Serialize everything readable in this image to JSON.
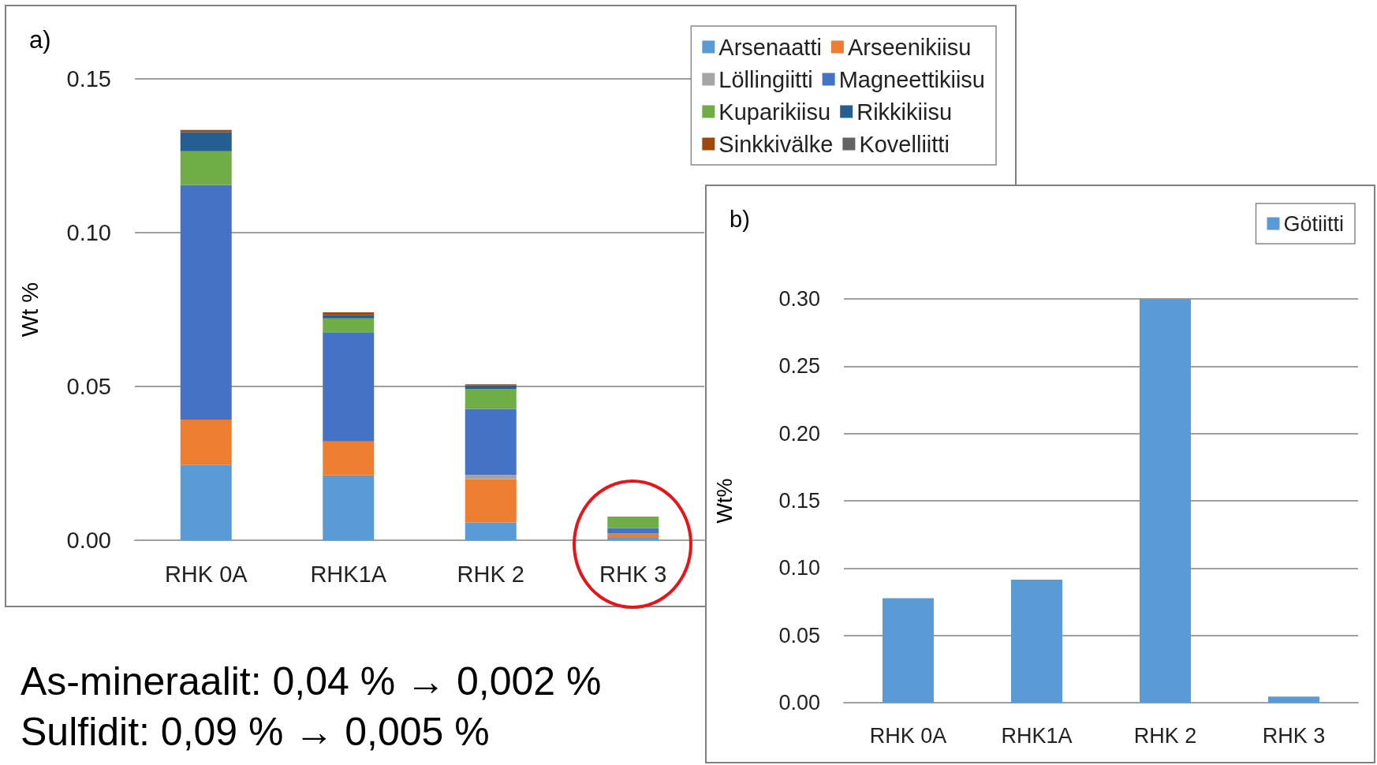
{
  "chart_data": [
    {
      "type": "bar",
      "title": "a)",
      "ylabel": "Wt %",
      "categories": [
        "RHK 0A",
        "RHK1A",
        "RHK 2",
        "RHK 3"
      ],
      "stacked": true,
      "grid": "y",
      "legend": "top right",
      "ylim": [
        0,
        0.15
      ],
      "yticks": [
        {
          "value": 0,
          "label": "0.00"
        },
        {
          "value": 0.05,
          "label": "0.05"
        },
        {
          "value": 0.1,
          "label": "0.10"
        },
        {
          "value": 0.15,
          "label": "0.15"
        }
      ],
      "series": [
        {
          "name": "Arsenaatti",
          "color": "#5b9bd5",
          "values": [
            0.0244,
            0.0211,
            0.0058,
            0.0008
          ]
        },
        {
          "name": "Arseenikiisu",
          "color": "#ed7d31",
          "values": [
            0.0148,
            0.011,
            0.0141,
            0.0014
          ]
        },
        {
          "name": "Löllingiitti",
          "color": "#a5a5a5",
          "values": [
            0,
            0,
            0.0013,
            0
          ]
        },
        {
          "name": "Magneettikiisu",
          "color": "#4472c4",
          "values": [
            0.0763,
            0.0355,
            0.0215,
            0.0018
          ]
        },
        {
          "name": "Kuparikiisu",
          "color": "#70ad47",
          "values": [
            0.011,
            0.0045,
            0.0065,
            0.0037
          ]
        },
        {
          "name": "Rikkikiisu",
          "color": "#255e91",
          "values": [
            0.0062,
            0.0012,
            0.0011,
            0
          ]
        },
        {
          "name": "Sinkkivälke",
          "color": "#9e480e",
          "values": [
            0.0007,
            0.0008,
            0.0004,
            0
          ]
        },
        {
          "name": "Kovelliitti",
          "color": "#636363",
          "values": [
            0,
            0,
            0,
            0
          ]
        }
      ],
      "annotations": [
        "As-mineraalit: 0,04 % → 0,002 %",
        "Sulfidit: 0,09 % → 0,005 %"
      ]
    },
    {
      "type": "bar",
      "title": "b)",
      "ylabel": "Wt%",
      "categories": [
        "RHK 0A",
        "RHK1A",
        "RHK 2",
        "RHK 3"
      ],
      "grid": "y",
      "legend": "top right",
      "ylim": [
        0,
        0.3
      ],
      "yticks": [
        {
          "value": 0,
          "label": "0.00"
        },
        {
          "value": 0.05,
          "label": "0.05"
        },
        {
          "value": 0.1,
          "label": "0.10"
        },
        {
          "value": 0.15,
          "label": "0.15"
        },
        {
          "value": 0.2,
          "label": "0.20"
        },
        {
          "value": 0.25,
          "label": "0.25"
        },
        {
          "value": 0.3,
          "label": "0.30"
        }
      ],
      "series": [
        {
          "name": "Götiitti",
          "color": "#5b9bd5",
          "values": [
            0.0776,
            0.0914,
            0.3,
            0.0045
          ]
        }
      ]
    }
  ]
}
